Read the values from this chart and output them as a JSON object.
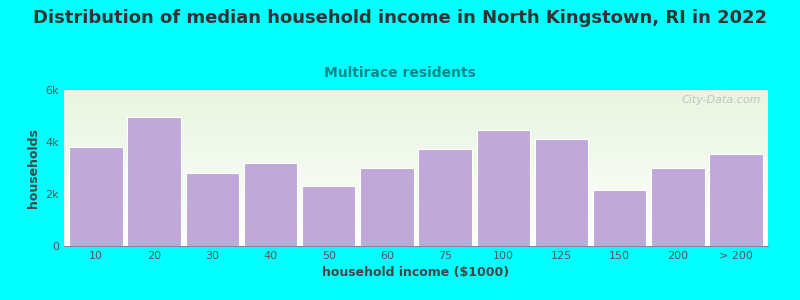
{
  "title": "Distribution of median household income in North Kingstown, RI in 2022",
  "subtitle": "Multirace residents",
  "xlabel": "household income ($1000)",
  "ylabel": "households",
  "background_color": "#00FFFF",
  "bar_color": "#C0A8D8",
  "bar_edge_color": "#ffffff",
  "categories": [
    "10",
    "20",
    "30",
    "40",
    "50",
    "60",
    "75",
    "100",
    "125",
    "150",
    "200",
    "> 200"
  ],
  "values": [
    3800,
    4950,
    2800,
    3200,
    2300,
    3000,
    3750,
    4450,
    4100,
    2150,
    3000,
    3550
  ],
  "ylim": [
    0,
    6000
  ],
  "yticks": [
    0,
    2000,
    4000,
    6000
  ],
  "ytick_labels": [
    "0",
    "2k",
    "4k",
    "6k"
  ],
  "title_fontsize": 13,
  "subtitle_fontsize": 10,
  "axis_label_fontsize": 9,
  "tick_fontsize": 8,
  "title_color": "#333333",
  "subtitle_color": "#008888",
  "axis_label_color": "#444444",
  "tick_color": "#555555",
  "watermark": "City-Data.com"
}
